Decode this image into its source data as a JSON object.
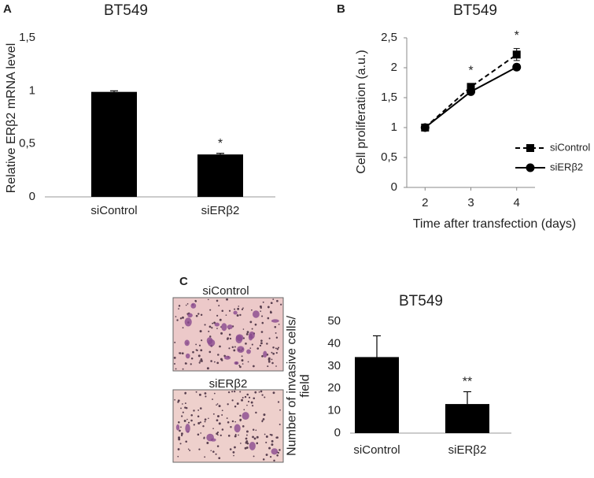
{
  "panel_labels": [
    "A",
    "B",
    "C"
  ],
  "image_captions": [
    "siControl",
    "siERβ2"
  ],
  "chart_data": [
    {
      "type": "bar",
      "title": "BT549",
      "ylabel": [
        "Relative ERβ2 mRNA level"
      ],
      "categories": [
        "siControl",
        "siERβ2"
      ],
      "values": [
        0.99,
        0.4
      ],
      "errors": [
        0.01,
        0.01
      ],
      "color": "#000000",
      "ylim": [
        0,
        1.5
      ],
      "yticks": [
        0,
        {
          "value": 0.5,
          "label": "0,5"
        },
        1,
        {
          "value": 1.5,
          "label": "1,5"
        }
      ],
      "annotations": [
        {
          "text": "*",
          "category": "siERβ2"
        }
      ]
    },
    {
      "type": "line",
      "title": "BT549",
      "xlabel": "Time after transfection (days)",
      "ylabel": [
        "Cell proliferation (a.u.)"
      ],
      "x": [
        2,
        3,
        4
      ],
      "xlim": [
        1.6,
        4.4
      ],
      "xticks": [
        2,
        3,
        4
      ],
      "ylim": [
        0,
        2.5
      ],
      "yticks": [
        0,
        {
          "value": 0.5,
          "label": "0,5"
        },
        1,
        {
          "value": 1.5,
          "label": "1,5"
        },
        2,
        {
          "value": 2.5,
          "label": "2,5"
        }
      ],
      "legend": "lower right",
      "series": [
        {
          "name": "siControl",
          "color": "#000000",
          "linestyle": "dashed",
          "marker": "square",
          "values": [
            1,
            1.68,
            2.22
          ],
          "errors": [
            0.02,
            0.05,
            0.1
          ]
        },
        {
          "name": "siERβ2",
          "color": "#000000",
          "linestyle": "solid",
          "marker": "circle",
          "values": [
            1,
            1.6,
            2.01
          ],
          "errors": [
            0.02,
            0.03,
            0.05
          ]
        }
      ],
      "annotations": [
        {
          "text": "*",
          "x": 3
        },
        {
          "text": "*",
          "x": 4
        }
      ]
    },
    {
      "type": "bar",
      "title": "BT549",
      "ylabel": [
        "Number of invasive cells/",
        "field"
      ],
      "categories": [
        "siControl",
        "siERβ2"
      ],
      "values": [
        34,
        13
      ],
      "errors": [
        9.5,
        5.5
      ],
      "color": "#000000",
      "ylim": [
        0,
        50
      ],
      "yticks": [
        0,
        10,
        20,
        30,
        40,
        50
      ],
      "annotations": [
        {
          "text": "**",
          "category": "siERβ2"
        }
      ]
    }
  ]
}
